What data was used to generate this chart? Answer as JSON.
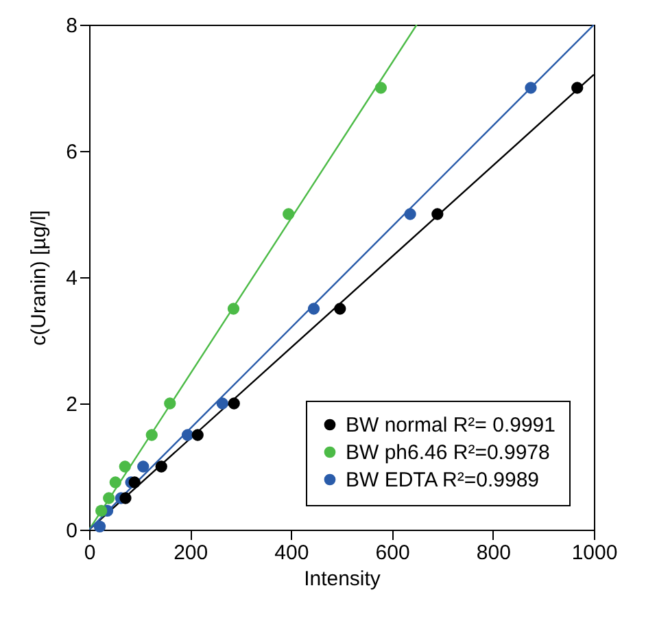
{
  "chart_data": {
    "type": "scatter",
    "xlabel": "Intensity",
    "ylabel": "c(Uranin) [µg/l]",
    "xlim": [
      0,
      1000
    ],
    "xticks": [
      0,
      200,
      400,
      600,
      800,
      1000
    ],
    "ylim": [
      0,
      8
    ],
    "yticks": [
      0,
      2,
      4,
      6,
      8
    ],
    "grid": false,
    "legend": "bottom right",
    "marker": "circle",
    "series": [
      {
        "name": "BW normal R²= 0.9991",
        "color": "#000000",
        "x": [
          72,
          90,
          143,
          215,
          287,
          497,
          690,
          967
        ],
        "values": [
          0.5,
          0.75,
          1,
          1.5,
          2,
          3.5,
          5,
          7
        ]
      },
      {
        "name": "BW ph6.46 R²=0.9978",
        "color": "#4cbb47",
        "x": [
          24,
          39,
          52,
          71,
          124,
          160,
          286,
          395,
          578
        ],
        "values": [
          0.3,
          0.5,
          0.75,
          1,
          1.5,
          2,
          3.5,
          5,
          7
        ]
      },
      {
        "name": "BW EDTA  R²=0.9989",
        "color": "#2a5caa",
        "x": [
          21,
          36,
          63,
          83,
          107,
          195,
          264,
          445,
          636,
          875
        ],
        "values": [
          0.05,
          0.3,
          0.5,
          0.75,
          1,
          1.5,
          2,
          3.5,
          5,
          7
        ]
      },
      {
        "type": "line",
        "marker": "none",
        "color": "#000000",
        "x": [
          0,
          1000
        ],
        "values": [
          0,
          7.21
        ]
      },
      {
        "type": "line",
        "marker": "none",
        "color": "#4cbb47",
        "x": [
          0,
          649
        ],
        "values": [
          0,
          8
        ]
      },
      {
        "type": "line",
        "marker": "none",
        "color": "#2a5caa",
        "x": [
          0,
          1000
        ],
        "values": [
          0,
          8
        ]
      }
    ]
  }
}
